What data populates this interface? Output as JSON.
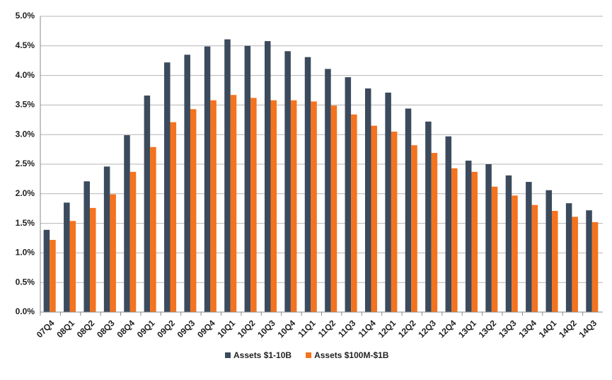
{
  "chart_data": {
    "type": "bar",
    "categories": [
      "07Q4",
      "08Q1",
      "08Q2",
      "08Q3",
      "08Q4",
      "09Q1",
      "09Q2",
      "09Q3",
      "09Q4",
      "10Q1",
      "10Q2",
      "10Q3",
      "10Q4",
      "11Q1",
      "11Q2",
      "11Q3",
      "11Q4",
      "12Q1",
      "12Q2",
      "12Q3",
      "12Q4",
      "13Q1",
      "13Q2",
      "13Q3",
      "13Q4",
      "14Q1",
      "14Q2",
      "14Q3"
    ],
    "series": [
      {
        "name": "Assets $1-10B",
        "color": "#3b4a5c",
        "values": [
          1.39,
          1.85,
          2.21,
          2.46,
          2.99,
          3.66,
          4.22,
          4.35,
          4.49,
          4.61,
          4.5,
          4.58,
          4.41,
          4.31,
          4.11,
          3.97,
          3.78,
          3.71,
          3.44,
          3.22,
          2.97,
          2.56,
          2.5,
          2.31,
          2.2,
          2.06,
          1.84,
          1.72
        ]
      },
      {
        "name": "Assets $100M-$1B",
        "color": "#f4731f",
        "values": [
          1.22,
          1.54,
          1.76,
          1.99,
          2.37,
          2.79,
          3.21,
          3.43,
          3.58,
          3.67,
          3.62,
          3.58,
          3.58,
          3.56,
          3.49,
          3.34,
          3.15,
          3.05,
          2.82,
          2.69,
          2.43,
          2.37,
          2.12,
          1.97,
          1.81,
          1.71,
          1.61,
          1.52
        ]
      }
    ],
    "ylim": [
      0,
      5
    ],
    "yticks": [
      {
        "value": 0,
        "label": "0.0%"
      },
      {
        "value": 0.5,
        "label": "0.5%"
      },
      {
        "value": 1,
        "label": "1.0%"
      },
      {
        "value": 1.5,
        "label": "1.5%"
      },
      {
        "value": 2,
        "label": "2.0%"
      },
      {
        "value": 2.5,
        "label": "2.5%"
      },
      {
        "value": 3,
        "label": "3.0%"
      },
      {
        "value": 3.5,
        "label": "3.5%"
      },
      {
        "value": 4,
        "label": "4.0%"
      },
      {
        "value": 4.5,
        "label": "4.5%"
      },
      {
        "value": 5,
        "label": "5.0%"
      }
    ],
    "grid": true,
    "legend": "bottom"
  }
}
